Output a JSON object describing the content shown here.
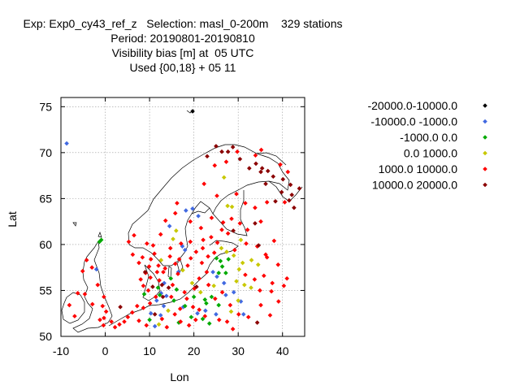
{
  "chart_data": {
    "type": "scatter",
    "title_lines": [
      "Exp: Exp0_cy43_ref_z   Selection: masl_0-200m    329 stations",
      "Period: 20190801-20190810",
      "Visibility bias [m] at  05 UTC",
      "Used {00,18} + 05 11"
    ],
    "xlabel": "Lon",
    "ylabel": "Lat",
    "xlim": [
      -10,
      45
    ],
    "ylim": [
      50,
      76
    ],
    "xticks": [
      -10,
      0,
      10,
      20,
      30,
      40
    ],
    "yticks": [
      50,
      55,
      60,
      65,
      70,
      75
    ],
    "grid": true,
    "legend_position": "right",
    "series": [
      {
        "name": "-20000.0-10000.0",
        "color": "#000000",
        "points": [
          [
            19.7,
            74.5
          ]
        ]
      },
      {
        "name": "-10000.0 -1000.0",
        "color": "#4169e1",
        "points": [
          [
            -8.7,
            71.0
          ],
          [
            -2.0,
            57.3
          ],
          [
            14.5,
            62.0
          ],
          [
            18.2,
            63.7
          ],
          [
            19.7,
            63.9
          ],
          [
            21.0,
            63.1
          ],
          [
            17.4,
            59.8
          ],
          [
            18.0,
            59.4
          ],
          [
            16.5,
            57.0
          ],
          [
            24.3,
            57.0
          ],
          [
            25.2,
            56.5
          ],
          [
            26.8,
            55.8
          ],
          [
            27.2,
            54.5
          ],
          [
            29.0,
            54.8
          ],
          [
            30.6,
            53.8
          ],
          [
            31.2,
            52.4
          ],
          [
            13.3,
            55.8
          ],
          [
            12.6,
            54.7
          ],
          [
            13.8,
            54.4
          ],
          [
            11.6,
            53.9
          ],
          [
            12.5,
            52.3
          ],
          [
            13.2,
            53.3
          ],
          [
            17.6,
            53.2
          ],
          [
            20.8,
            52.5
          ],
          [
            22.6,
            52.8
          ],
          [
            25.0,
            52.4
          ],
          [
            10.3,
            52.5
          ],
          [
            11.2,
            51.1
          ]
        ]
      },
      {
        "name": "-1000.0 0.0",
        "color": "#00aa00",
        "points": [
          [
            -0.9,
            60.5
          ],
          [
            -1.3,
            60.3
          ],
          [
            26.0,
            58.2
          ],
          [
            27.8,
            58.4
          ],
          [
            25.6,
            56.9
          ],
          [
            26.4,
            57.6
          ],
          [
            11.9,
            55.3
          ],
          [
            12.3,
            54.5
          ],
          [
            8.8,
            54.6
          ],
          [
            15.5,
            53.9
          ],
          [
            18.0,
            53.3
          ],
          [
            20.0,
            54.3
          ],
          [
            22.5,
            54.0
          ],
          [
            22.8,
            53.6
          ],
          [
            24.0,
            54.3
          ],
          [
            25.6,
            53.4
          ],
          [
            10.0,
            51.8
          ],
          [
            16.6,
            51.5
          ],
          [
            19.4,
            52.1
          ],
          [
            22.0,
            51.9
          ],
          [
            23.5,
            51.4
          ],
          [
            27.2,
            56.9
          ],
          [
            25.1,
            58.5
          ],
          [
            14.8,
            56.3
          ],
          [
            16.1,
            55.1
          ]
        ]
      },
      {
        "name": "0.0 1000.0",
        "color": "#c8c800",
        "points": [
          [
            26.8,
            67.3
          ],
          [
            27.6,
            64.2
          ],
          [
            28.6,
            64.1
          ],
          [
            15.3,
            60.6
          ],
          [
            16.0,
            61.5
          ],
          [
            12.6,
            58.3
          ],
          [
            26.2,
            59.6
          ],
          [
            27.4,
            59.2
          ],
          [
            29.0,
            58.8
          ],
          [
            31.0,
            58.0
          ],
          [
            33.0,
            58.3
          ],
          [
            34.5,
            57.8
          ],
          [
            30.2,
            57.3
          ],
          [
            29.6,
            56.0
          ],
          [
            31.4,
            55.6
          ],
          [
            32.9,
            55.3
          ],
          [
            24.5,
            55.5
          ],
          [
            14.2,
            52.8
          ],
          [
            19.6,
            55.8
          ],
          [
            21.5,
            54.8
          ],
          [
            12.1,
            51.3
          ],
          [
            28.4,
            52.7
          ],
          [
            30.0,
            53.9
          ],
          [
            17.5,
            57.2
          ],
          [
            30.6,
            60.5
          ]
        ]
      },
      {
        "name": "1000.0 10000.0",
        "color": "#ff0000",
        "points": [
          [
            27.3,
            69.0
          ],
          [
            29.8,
            70.1
          ],
          [
            33.9,
            69.7
          ],
          [
            35.2,
            70.3
          ],
          [
            39.5,
            68.7
          ],
          [
            41.2,
            67.9
          ],
          [
            24.7,
            68.6
          ],
          [
            22.3,
            66.6
          ],
          [
            25.2,
            65.3
          ],
          [
            29.6,
            65.5
          ],
          [
            31.6,
            64.5
          ],
          [
            33.8,
            64.0
          ],
          [
            36.5,
            64.6
          ],
          [
            40.5,
            64.6
          ],
          [
            30.4,
            62.3
          ],
          [
            32.1,
            61.6
          ],
          [
            35.1,
            62.5
          ],
          [
            27.7,
            61.2
          ],
          [
            38.1,
            60.4
          ],
          [
            34.3,
            59.8
          ],
          [
            36.5,
            58.6
          ],
          [
            39.0,
            57.8
          ],
          [
            41.0,
            56.3
          ],
          [
            35.8,
            56.6
          ],
          [
            37.5,
            54.9
          ],
          [
            39.1,
            53.8
          ],
          [
            35.1,
            53.4
          ],
          [
            37.2,
            52.3
          ],
          [
            32.3,
            52.1
          ],
          [
            13.6,
            62.6
          ],
          [
            15.8,
            63.4
          ],
          [
            16.2,
            64.5
          ],
          [
            19.2,
            62.5
          ],
          [
            21.6,
            61.8
          ],
          [
            22.1,
            60.5
          ],
          [
            23.9,
            60.8
          ],
          [
            25.3,
            60.2
          ],
          [
            26.3,
            61.6
          ],
          [
            12.5,
            61.1
          ],
          [
            14.7,
            59.6
          ],
          [
            17.1,
            60.1
          ],
          [
            19.2,
            60.3
          ],
          [
            20.5,
            59.2
          ],
          [
            10.8,
            59.9
          ],
          [
            9.4,
            60.1
          ],
          [
            8.4,
            58.6
          ],
          [
            10.3,
            58.4
          ],
          [
            11.1,
            59.0
          ],
          [
            12.0,
            57.7
          ],
          [
            13.1,
            57.0
          ],
          [
            14.6,
            58.7
          ],
          [
            15.8,
            57.9
          ],
          [
            16.7,
            58.4
          ],
          [
            18.6,
            57.7
          ],
          [
            19.3,
            58.5
          ],
          [
            21.8,
            58.0
          ],
          [
            22.9,
            57.0
          ],
          [
            21.2,
            56.3
          ],
          [
            23.3,
            55.6
          ],
          [
            24.8,
            54.1
          ],
          [
            26.4,
            54.8
          ],
          [
            28.2,
            53.4
          ],
          [
            30.1,
            52.4
          ],
          [
            25.7,
            51.8
          ],
          [
            27.5,
            51.6
          ],
          [
            28.8,
            50.8
          ],
          [
            6.5,
            61.0
          ],
          [
            5.3,
            60.3
          ],
          [
            6.2,
            58.9
          ],
          [
            7.6,
            58.0
          ],
          [
            9.1,
            56.9
          ],
          [
            10.2,
            56.4
          ],
          [
            8.6,
            55.5
          ],
          [
            9.7,
            55.0
          ],
          [
            11.4,
            54.3
          ],
          [
            10.1,
            53.6
          ],
          [
            8.6,
            53.1
          ],
          [
            7.2,
            53.3
          ],
          [
            6.1,
            52.6
          ],
          [
            5.1,
            52.1
          ],
          [
            4.3,
            51.6
          ],
          [
            3.2,
            51.3
          ],
          [
            2.2,
            51.0
          ],
          [
            7.6,
            51.7
          ],
          [
            9.3,
            51.2
          ],
          [
            12.8,
            51.9
          ],
          [
            13.9,
            51.0
          ],
          [
            15.7,
            52.4
          ],
          [
            16.9,
            53.0
          ],
          [
            18.4,
            54.1
          ],
          [
            19.8,
            53.2
          ],
          [
            21.2,
            52.9
          ],
          [
            22.5,
            52.2
          ],
          [
            17.0,
            51.6
          ],
          [
            18.9,
            51.2
          ],
          [
            20.4,
            51.8
          ],
          [
            -3.0,
            57.5
          ],
          [
            -4.2,
            58.3
          ],
          [
            -5.1,
            57.1
          ],
          [
            -1.7,
            55.6
          ],
          [
            -0.3,
            54.3
          ],
          [
            -0.6,
            53.3
          ],
          [
            0.2,
            52.7
          ],
          [
            -1.2,
            51.8
          ],
          [
            -0.4,
            51.2
          ],
          [
            -2.9,
            53.5
          ],
          [
            -4.6,
            54.6
          ],
          [
            -6.2,
            54.7
          ],
          [
            -8.1,
            53.4
          ],
          [
            -6.9,
            52.2
          ],
          [
            -0.3,
            52.0
          ],
          [
            1.4,
            51.6
          ],
          [
            20.1,
            55.2
          ],
          [
            17.9,
            54.8
          ],
          [
            15.2,
            55.6
          ],
          [
            14.9,
            54.3
          ],
          [
            23.2,
            58.7
          ],
          [
            24.6,
            59.1
          ],
          [
            22.0,
            59.6
          ],
          [
            9.9,
            57.6
          ],
          [
            11.7,
            57.0
          ],
          [
            8.0,
            56.2
          ],
          [
            12.2,
            56.1
          ],
          [
            13.5,
            57.4
          ],
          [
            16.4,
            56.8
          ],
          [
            31.6,
            56.7
          ],
          [
            33.7,
            56.2
          ],
          [
            34.9,
            55.0
          ],
          [
            36.2,
            58.9
          ],
          [
            24.0,
            62.9
          ],
          [
            26.6,
            62.4
          ],
          [
            28.5,
            62.8
          ],
          [
            31.8,
            60.1
          ],
          [
            29.2,
            59.4
          ],
          [
            37.7,
            55.8
          ],
          [
            40.3,
            55.5
          ]
        ]
      },
      {
        "name": "10000.0 20000.0",
        "color": "#8b0000",
        "points": [
          [
            27.7,
            70.1
          ],
          [
            28.8,
            70.6
          ],
          [
            26.3,
            70.1
          ],
          [
            25.0,
            70.7
          ],
          [
            30.4,
            69.3
          ],
          [
            32.5,
            68.3
          ],
          [
            34.0,
            68.8
          ],
          [
            35.4,
            68.3
          ],
          [
            36.7,
            68.0
          ],
          [
            40.1,
            67.1
          ],
          [
            41.8,
            66.5
          ],
          [
            43.8,
            66.1
          ],
          [
            39.8,
            65.7
          ],
          [
            42.1,
            65.4
          ],
          [
            38.4,
            64.7
          ],
          [
            41.5,
            64.8
          ],
          [
            42.6,
            64.0
          ],
          [
            36.2,
            66.6
          ],
          [
            37.9,
            67.4
          ],
          [
            35.1,
            67.9
          ],
          [
            33.8,
            62.3
          ],
          [
            28.9,
            61.5
          ],
          [
            34.6,
            59.9
          ],
          [
            20.6,
            55.4
          ],
          [
            9.0,
            57.0
          ],
          [
            10.7,
            55.4
          ],
          [
            11.2,
            52.4
          ],
          [
            34.3,
            51.5
          ],
          [
            23.0,
            69.6
          ],
          [
            3.4,
            53.2
          ],
          [
            12.8,
            55.6
          ],
          [
            14.3,
            55.3
          ],
          [
            13.0,
            54.3
          ]
        ]
      }
    ]
  }
}
